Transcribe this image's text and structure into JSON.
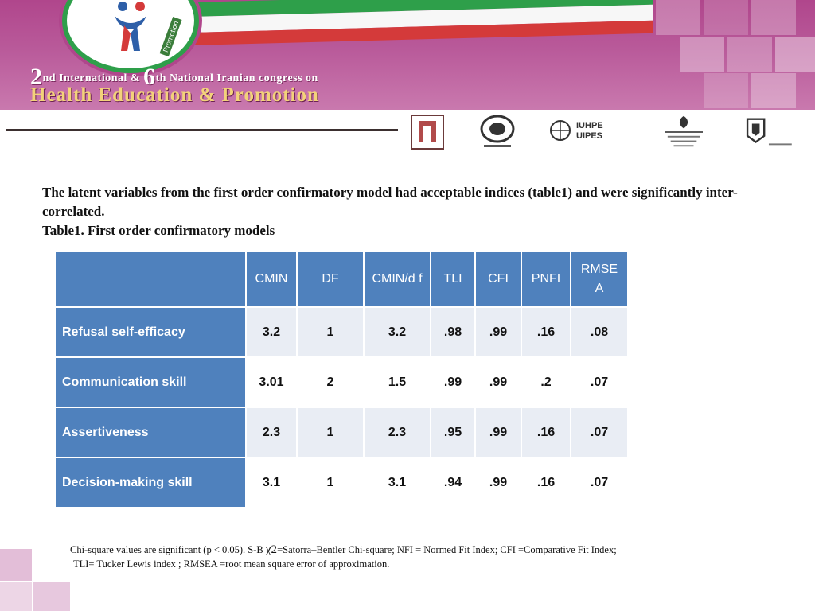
{
  "banner": {
    "line1_num1": "2",
    "line1_a": "nd International & ",
    "line1_num2": "6",
    "line1_b": "th National Iranian congress on",
    "line2": "Health Education & Promotion",
    "emblem_label": "Promotion",
    "colors": {
      "banner": "#b0468c",
      "green": "#2e9f4a",
      "red": "#d43a3a",
      "gold": "#f3d27a"
    }
  },
  "logos": {
    "iuhpe_line1": "IUHPE",
    "iuhpe_line2": "UIPES"
  },
  "intro": {
    "paragraph": "The latent variables from the first order confirmatory model had acceptable indices (table1) and were significantly inter-correlated.",
    "caption": "Table1. First order confirmatory models"
  },
  "table": {
    "headers": [
      "",
      "CMIN",
      "DF",
      "CMIN/d f",
      "TLI",
      "CFI",
      "PNFI",
      "RMSE A"
    ],
    "rows": [
      {
        "label": "Refusal self-efficacy",
        "values": [
          "3.2",
          "1",
          "3.2",
          ".98",
          ".99",
          ".16",
          ".08"
        ]
      },
      {
        "label": "Communication skill",
        "values": [
          "3.01",
          "2",
          "1.5",
          ".99",
          ".99",
          ".2",
          ".07"
        ]
      },
      {
        "label": "Assertiveness",
        "values": [
          "2.3",
          "1",
          "2.3",
          ".95",
          ".99",
          ".16",
          ".07"
        ]
      },
      {
        "label": "Decision-making skill",
        "values": [
          "3.1",
          "1",
          "3.1",
          ".94",
          ".99",
          ".16",
          ".07"
        ]
      }
    ],
    "colors": {
      "header_bg": "#4f81bd",
      "band": "#e9edf4"
    }
  },
  "footnote": {
    "line1_a": "Chi-square values are significant (p < 0.05). S-B ",
    "chi_symbol": "χ2",
    "line1_b": "=Satorra–Bentler Chi-square; NFI = Normed Fit Index; CFI =Comparative Fit Index;",
    "line2": "TLI= Tucker Lewis index ; RMSEA =root mean square error of approximation."
  }
}
